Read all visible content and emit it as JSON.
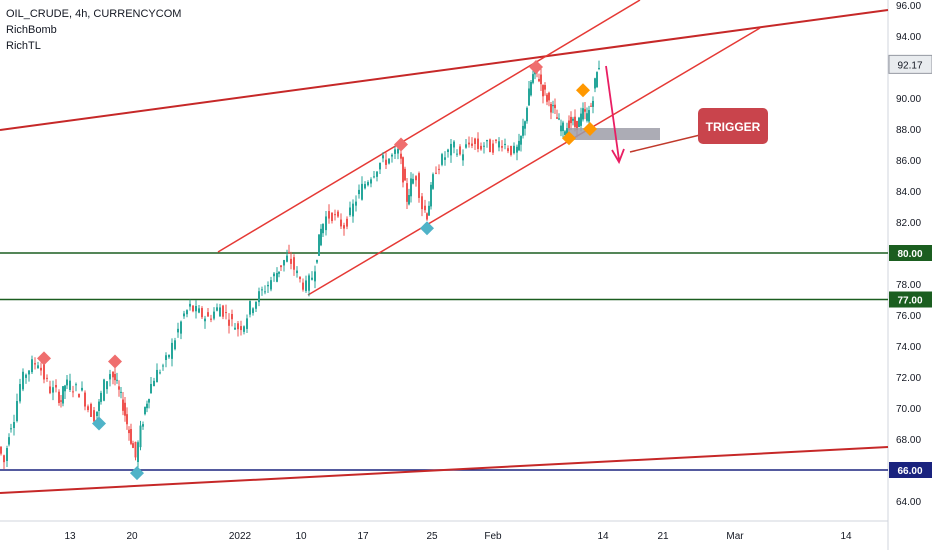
{
  "legend": {
    "symbol_line": "OIL_CRUDE, 4h, CURRENCYCOM",
    "indicator_1": "RichBomb",
    "indicator_2": "RichTL"
  },
  "chart_data": {
    "type": "candlestick",
    "symbol": "OIL_CRUDE",
    "timeframe": "4h",
    "source": "CURRENCYCOM",
    "ylim": [
      63,
      96
    ],
    "y_ticks": [
      64,
      66,
      68,
      70,
      72,
      74,
      76,
      78,
      80,
      82,
      84,
      86,
      88,
      90,
      92,
      94,
      96
    ],
    "x_ticks": [
      "13",
      "20",
      "2022",
      "10",
      "17",
      "25",
      "Feb",
      "14",
      "21",
      "Mar",
      "14"
    ],
    "last_price": 92.17,
    "last_price_label": "92.17",
    "horizontal_levels": [
      {
        "value": 80.0,
        "label": "80.00",
        "color": "#1b5e20"
      },
      {
        "value": 77.0,
        "label": "77.00",
        "color": "#1b5e20"
      },
      {
        "value": 66.0,
        "label": "66.00",
        "color": "#1a237e"
      }
    ],
    "trend_lines": [
      {
        "name": "upper-long",
        "color": "#c62828"
      },
      {
        "name": "lower-long",
        "color": "#c62828"
      },
      {
        "name": "channel-upper",
        "color": "#e53935"
      },
      {
        "name": "channel-lower",
        "color": "#e53935"
      }
    ],
    "price_path": [
      [
        0,
        67.5
      ],
      [
        6,
        66.5
      ],
      [
        10,
        68.5
      ],
      [
        16,
        69.5
      ],
      [
        22,
        71.5
      ],
      [
        28,
        72.3
      ],
      [
        34,
        72.8
      ],
      [
        40,
        73.0
      ],
      [
        46,
        72.0
      ],
      [
        52,
        71.2
      ],
      [
        58,
        71.0
      ],
      [
        62,
        70.5
      ],
      [
        66,
        71.5
      ],
      [
        72,
        71.5
      ],
      [
        78,
        71.2
      ],
      [
        84,
        71.0
      ],
      [
        90,
        70.0
      ],
      [
        96,
        69.5
      ],
      [
        100,
        70.2
      ],
      [
        106,
        71.5
      ],
      [
        112,
        72.3
      ],
      [
        116,
        71.8
      ],
      [
        120,
        71.0
      ],
      [
        124,
        70.2
      ],
      [
        128,
        69.0
      ],
      [
        132,
        68.0
      ],
      [
        137,
        66.8
      ],
      [
        142,
        68.5
      ],
      [
        146,
        70.0
      ],
      [
        150,
        71.0
      ],
      [
        156,
        72.0
      ],
      [
        162,
        72.5
      ],
      [
        168,
        73.0
      ],
      [
        174,
        74.0
      ],
      [
        180,
        75.0
      ],
      [
        186,
        76.0
      ],
      [
        192,
        76.5
      ],
      [
        198,
        76.2
      ],
      [
        204,
        76.0
      ],
      [
        210,
        75.8
      ],
      [
        216,
        76.2
      ],
      [
        222,
        76.5
      ],
      [
        228,
        76.0
      ],
      [
        234,
        75.5
      ],
      [
        240,
        75.2
      ],
      [
        246,
        75.5
      ],
      [
        252,
        76.5
      ],
      [
        258,
        77.0
      ],
      [
        264,
        77.5
      ],
      [
        270,
        78.0
      ],
      [
        276,
        78.5
      ],
      [
        280,
        79.0
      ],
      [
        286,
        79.5
      ],
      [
        290,
        79.8
      ],
      [
        296,
        79.0
      ],
      [
        302,
        78.2
      ],
      [
        308,
        77.8
      ],
      [
        314,
        78.5
      ],
      [
        318,
        80.0
      ],
      [
        322,
        81.5
      ],
      [
        328,
        82.3
      ],
      [
        334,
        82.5
      ],
      [
        340,
        82.0
      ],
      [
        346,
        81.8
      ],
      [
        352,
        82.5
      ],
      [
        358,
        83.5
      ],
      [
        364,
        84.2
      ],
      [
        370,
        84.8
      ],
      [
        376,
        85.3
      ],
      [
        382,
        85.8
      ],
      [
        388,
        86.0
      ],
      [
        394,
        86.2
      ],
      [
        400,
        86.5
      ],
      [
        404,
        85.0
      ],
      [
        408,
        83.5
      ],
      [
        412,
        84.5
      ],
      [
        418,
        85.0
      ],
      [
        424,
        83.0
      ],
      [
        428,
        82.5
      ],
      [
        432,
        84.0
      ],
      [
        438,
        85.5
      ],
      [
        444,
        86.0
      ],
      [
        450,
        86.5
      ],
      [
        456,
        86.8
      ],
      [
        462,
        86.3
      ],
      [
        468,
        86.8
      ],
      [
        474,
        87.2
      ],
      [
        480,
        86.8
      ],
      [
        486,
        87.0
      ],
      [
        492,
        86.8
      ],
      [
        498,
        87.0
      ],
      [
        504,
        87.2
      ],
      [
        510,
        86.8
      ],
      [
        516,
        86.5
      ],
      [
        520,
        86.8
      ],
      [
        524,
        88.0
      ],
      [
        528,
        89.5
      ],
      [
        532,
        91.0
      ],
      [
        536,
        91.8
      ],
      [
        540,
        91.3
      ],
      [
        544,
        90.5
      ],
      [
        548,
        90.0
      ],
      [
        552,
        89.5
      ],
      [
        556,
        89.0
      ],
      [
        560,
        88.3
      ],
      [
        564,
        88.0
      ],
      [
        568,
        88.2
      ],
      [
        572,
        88.5
      ],
      [
        576,
        88.2
      ],
      [
        580,
        88.5
      ],
      [
        584,
        89.0
      ],
      [
        588,
        88.8
      ],
      [
        592,
        89.5
      ],
      [
        596,
        91.0
      ],
      [
        600,
        92.17
      ]
    ],
    "markers": [
      {
        "type": "red-diamond",
        "x": 44,
        "y": 73.2
      },
      {
        "type": "red-diamond",
        "x": 115,
        "y": 73.0
      },
      {
        "type": "teal-diamond",
        "x": 99,
        "y": 69.0
      },
      {
        "type": "teal-diamond",
        "x": 137,
        "y": 65.8
      },
      {
        "type": "red-diamond",
        "x": 401,
        "y": 87.0
      },
      {
        "type": "teal-diamond",
        "x": 427,
        "y": 81.6
      },
      {
        "type": "red-diamond",
        "x": 536,
        "y": 92.0
      },
      {
        "type": "orange-diamond",
        "x": 569,
        "y": 87.4
      },
      {
        "type": "orange-diamond",
        "x": 590,
        "y": 88.0
      },
      {
        "type": "orange-diamond",
        "x": 583,
        "y": 90.5
      }
    ],
    "annotation": {
      "text": "TRIGGER"
    }
  }
}
